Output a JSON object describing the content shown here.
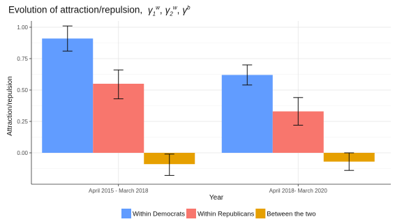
{
  "chart_data": {
    "type": "bar",
    "title": "Evolution of attraction/repulsion,",
    "title_symbols": [
      {
        "base": "γ",
        "sub": "1",
        "sup": "w",
        "sep": ","
      },
      {
        "base": "γ",
        "sub": "2",
        "sup": "w",
        "sep": ","
      },
      {
        "base": "γ",
        "sub": "",
        "sup": "b",
        "sep": ""
      }
    ],
    "xlabel": "Year",
    "ylabel": "Attraction/repulsion",
    "categories": [
      "April 2015 - March 2018",
      "April 2018- March 2020"
    ],
    "ylim": [
      -0.25,
      1.05
    ],
    "yticks": [
      0.0,
      0.25,
      0.5,
      0.75,
      1.0
    ],
    "ytick_labels": [
      "0.00",
      "0.25",
      "0.50",
      "0.75",
      "1.00"
    ],
    "grid": true,
    "legend_position": "bottom",
    "series": [
      {
        "name": "Within Democrats",
        "color": "#619CFF",
        "values": [
          0.91,
          0.62
        ],
        "err_low": [
          0.81,
          0.54
        ],
        "err_high": [
          1.01,
          0.7
        ]
      },
      {
        "name": "Within Republicans",
        "color": "#F8766D",
        "values": [
          0.55,
          0.33
        ],
        "err_low": [
          0.43,
          0.22
        ],
        "err_high": [
          0.66,
          0.44
        ]
      },
      {
        "name": "Between the two",
        "color": "#E6A000",
        "values": [
          -0.09,
          -0.07
        ],
        "err_low": [
          -0.18,
          -0.14
        ],
        "err_high": [
          -0.01,
          0.0
        ]
      }
    ]
  }
}
